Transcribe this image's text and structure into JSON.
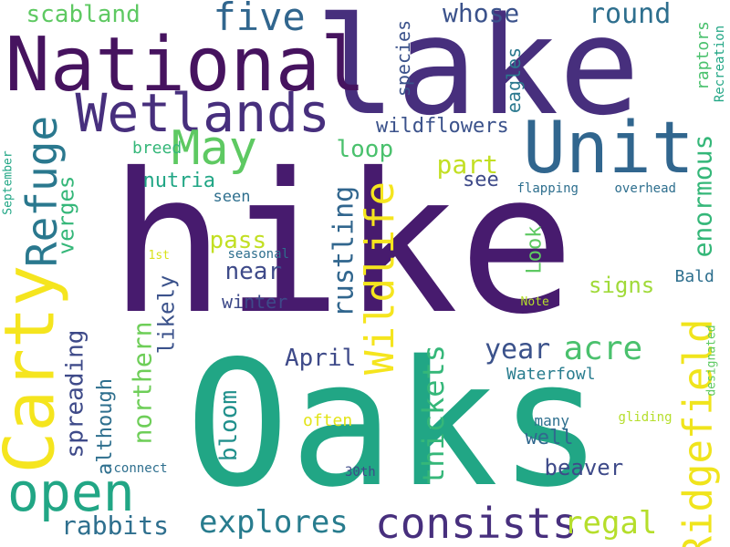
{
  "words": [
    {
      "text": "hike",
      "color": "#471b6e"
    },
    {
      "text": "Oaks",
      "color": "#21a685"
    },
    {
      "text": "lake",
      "color": "#472f7d"
    },
    {
      "text": "National",
      "color": "#46135f"
    },
    {
      "text": "Carty",
      "color": "#f5e51e"
    },
    {
      "text": "Unit",
      "color": "#31668e"
    },
    {
      "text": "Wetlands",
      "color": "#472f7d"
    },
    {
      "text": "Ridgefield",
      "color": "#f0e41c"
    },
    {
      "text": "open",
      "color": "#21a685"
    },
    {
      "text": "consists",
      "color": "#472f7d"
    },
    {
      "text": "May",
      "color": "#5ec962"
    },
    {
      "text": "Refuge",
      "color": "#2a788e"
    },
    {
      "text": "Wildlife",
      "color": "#f5e51e"
    },
    {
      "text": "five",
      "color": "#31668e"
    },
    {
      "text": "acre",
      "color": "#4ac16d"
    },
    {
      "text": "explores",
      "color": "#287c8e"
    },
    {
      "text": "rabbits",
      "color": "#2e6f8e"
    },
    {
      "text": "regal",
      "color": "#b5de2b"
    },
    {
      "text": "scabland",
      "color": "#5ec962"
    },
    {
      "text": "round",
      "color": "#2e6f8e"
    },
    {
      "text": "whose",
      "color": "#3b528b"
    },
    {
      "text": "enormous",
      "color": "#35b779"
    },
    {
      "text": "thickets",
      "color": "#35b779"
    },
    {
      "text": "spreading",
      "color": "#3e4a89"
    },
    {
      "text": "northern",
      "color": "#6ece58"
    },
    {
      "text": "rustling",
      "color": "#31668e"
    },
    {
      "text": "year",
      "color": "#3b528b"
    },
    {
      "text": "bloom",
      "color": "#21908c"
    },
    {
      "text": "loop",
      "color": "#4ac16d"
    },
    {
      "text": "part",
      "color": "#c2df23"
    },
    {
      "text": "pass",
      "color": "#c2df23"
    },
    {
      "text": "near",
      "color": "#3e4a89"
    },
    {
      "text": "verges",
      "color": "#35b779"
    },
    {
      "text": "wildflowers",
      "color": "#3b528b"
    },
    {
      "text": "although",
      "color": "#2e6f8e"
    },
    {
      "text": "beaver",
      "color": "#3e4a89"
    },
    {
      "text": "likely",
      "color": "#3b528b"
    },
    {
      "text": "April",
      "color": "#3e4a89"
    },
    {
      "text": "signs",
      "color": "#a0da39"
    },
    {
      "text": "Look",
      "color": "#5ec962"
    },
    {
      "text": "see",
      "color": "#3e4a89"
    },
    {
      "text": "nutria",
      "color": "#21a685"
    },
    {
      "text": "well",
      "color": "#31688e"
    },
    {
      "text": "winter",
      "color": "#3e4a89"
    },
    {
      "text": "species",
      "color": "#3b528b"
    },
    {
      "text": "eagles",
      "color": "#2a788e"
    },
    {
      "text": "raptors",
      "color": "#4ac16d"
    },
    {
      "text": "breed",
      "color": "#35b779"
    },
    {
      "text": "seen",
      "color": "#2e6f8e"
    },
    {
      "text": "Bald",
      "color": "#2e6f8e"
    },
    {
      "text": "Waterfowl",
      "color": "#287c8e"
    },
    {
      "text": "often",
      "color": "#e2e418"
    },
    {
      "text": "many",
      "color": "#2e6f8e"
    },
    {
      "text": "flapping",
      "color": "#2e6f8e"
    },
    {
      "text": "overhead",
      "color": "#2e6f8e"
    },
    {
      "text": "Recreation",
      "color": "#21a685"
    },
    {
      "text": "September",
      "color": "#21a685"
    },
    {
      "text": "seasonal",
      "color": "#2e6f8e"
    },
    {
      "text": "1st",
      "color": "#d8e219"
    },
    {
      "text": "Note",
      "color": "#b5de2b"
    },
    {
      "text": "designated",
      "color": "#5ec962"
    },
    {
      "text": "gliding",
      "color": "#b5de2b"
    },
    {
      "text": "connect",
      "color": "#2e6f8e"
    },
    {
      "text": "30th",
      "color": "#3e4a89"
    }
  ]
}
